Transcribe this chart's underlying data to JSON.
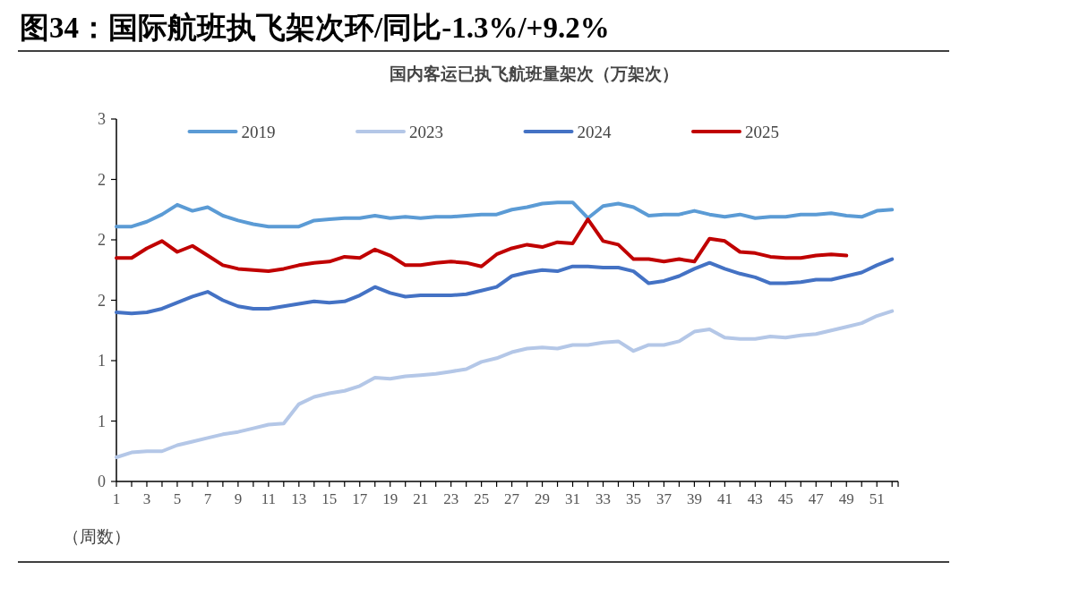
{
  "chart_data": {
    "type": "line",
    "title": "图34：国际航班执飞架次环/同比-1.3%/+9.2%",
    "subtitle": "国内客运已执飞航班量架次（万架次）",
    "xlabel": "（周数）",
    "x": [
      1,
      2,
      3,
      4,
      5,
      6,
      7,
      8,
      9,
      10,
      11,
      12,
      13,
      14,
      15,
      16,
      17,
      18,
      19,
      20,
      21,
      22,
      23,
      24,
      25,
      26,
      27,
      28,
      29,
      30,
      31,
      32,
      33,
      34,
      35,
      36,
      37,
      38,
      39,
      40,
      41,
      42,
      43,
      44,
      45,
      46,
      47,
      48,
      49,
      50,
      51,
      52
    ],
    "xlim": [
      1,
      52.4
    ],
    "xticks": [
      1,
      {
        "value": 2,
        "label": null
      },
      3,
      {
        "value": 4,
        "label": null
      },
      5,
      {
        "value": 6,
        "label": null
      },
      7,
      {
        "value": 8,
        "label": null
      },
      9,
      {
        "value": 10,
        "label": null
      },
      11,
      {
        "value": 12,
        "label": null
      },
      13,
      {
        "value": 14,
        "label": null
      },
      15,
      {
        "value": 16,
        "label": null
      },
      17,
      {
        "value": 18,
        "label": null
      },
      19,
      {
        "value": 20,
        "label": null
      },
      21,
      {
        "value": 22,
        "label": null
      },
      23,
      {
        "value": 24,
        "label": null
      },
      25,
      {
        "value": 26,
        "label": null
      },
      27,
      {
        "value": 28,
        "label": null
      },
      29,
      {
        "value": 30,
        "label": null
      },
      31,
      {
        "value": 32,
        "label": null
      },
      33,
      {
        "value": 34,
        "label": null
      },
      35,
      {
        "value": 36,
        "label": null
      },
      37,
      {
        "value": 38,
        "label": null
      },
      39,
      {
        "value": 40,
        "label": null
      },
      41,
      {
        "value": 42,
        "label": null
      },
      43,
      {
        "value": 44,
        "label": null
      },
      45,
      {
        "value": 46,
        "label": null
      },
      47,
      {
        "value": 48,
        "label": null
      },
      49,
      {
        "value": 50,
        "label": null
      },
      51,
      {
        "value": 52,
        "label": null
      }
    ],
    "ylim": [
      0,
      3
    ],
    "yticks": [
      0,
      {
        "value": 0.5,
        "label": "1"
      },
      1,
      {
        "value": 1.5,
        "label": "2"
      },
      2,
      {
        "value": 2.5,
        "label": "2"
      },
      3
    ],
    "grid": false,
    "legend": "top",
    "line_style": "solid",
    "marker": "none",
    "series": [
      {
        "name": "2019",
        "color": "#5b9bd5",
        "values": [
          2.11,
          2.11,
          2.15,
          2.21,
          2.29,
          2.24,
          2.27,
          2.2,
          2.16,
          2.13,
          2.11,
          2.11,
          2.11,
          2.16,
          2.17,
          2.18,
          2.18,
          2.2,
          2.18,
          2.19,
          2.18,
          2.19,
          2.19,
          2.2,
          2.21,
          2.21,
          2.25,
          2.27,
          2.3,
          2.31,
          2.31,
          2.18,
          2.28,
          2.3,
          2.27,
          2.2,
          2.21,
          2.21,
          2.24,
          2.21,
          2.19,
          2.21,
          2.18,
          2.19,
          2.19,
          2.21,
          2.21,
          2.22,
          2.2,
          2.19,
          2.24,
          2.25
        ]
      },
      {
        "name": "2023",
        "color": "#b4c7e7",
        "values": [
          0.2,
          0.24,
          0.25,
          0.25,
          0.3,
          0.33,
          0.36,
          0.39,
          0.41,
          0.44,
          0.47,
          0.48,
          0.64,
          0.7,
          0.73,
          0.75,
          0.79,
          0.86,
          0.85,
          0.87,
          0.88,
          0.89,
          0.91,
          0.93,
          0.99,
          1.02,
          1.07,
          1.1,
          1.11,
          1.1,
          1.13,
          1.13,
          1.15,
          1.16,
          1.08,
          1.13,
          1.13,
          1.16,
          1.24,
          1.26,
          1.19,
          1.18,
          1.18,
          1.2,
          1.19,
          1.21,
          1.22,
          1.25,
          1.28,
          1.31,
          1.37,
          1.41
        ]
      },
      {
        "name": "2024",
        "color": "#4472c4",
        "values": [
          1.4,
          1.39,
          1.4,
          1.43,
          1.48,
          1.53,
          1.57,
          1.5,
          1.45,
          1.43,
          1.43,
          1.45,
          1.47,
          1.49,
          1.48,
          1.49,
          1.54,
          1.61,
          1.56,
          1.53,
          1.54,
          1.54,
          1.54,
          1.55,
          1.58,
          1.61,
          1.7,
          1.73,
          1.75,
          1.74,
          1.78,
          1.78,
          1.77,
          1.77,
          1.74,
          1.64,
          1.66,
          1.7,
          1.76,
          1.81,
          1.76,
          1.72,
          1.69,
          1.64,
          1.64,
          1.65,
          1.67,
          1.67,
          1.7,
          1.73,
          1.79,
          1.84
        ]
      },
      {
        "name": "2025",
        "color": "#c00000",
        "values": [
          1.85,
          1.85,
          1.93,
          1.99,
          1.9,
          1.95,
          1.87,
          1.79,
          1.76,
          1.75,
          1.74,
          1.76,
          1.79,
          1.81,
          1.82,
          1.86,
          1.85,
          1.92,
          1.87,
          1.79,
          1.79,
          1.81,
          1.82,
          1.81,
          1.78,
          1.88,
          1.93,
          1.96,
          1.94,
          1.98,
          1.97,
          2.17,
          1.99,
          1.96,
          1.84,
          1.84,
          1.82,
          1.84,
          1.82,
          2.01,
          1.99,
          1.9,
          1.89,
          1.86,
          1.85,
          1.85,
          1.87,
          1.88,
          1.87,
          null,
          null,
          null
        ]
      }
    ]
  }
}
